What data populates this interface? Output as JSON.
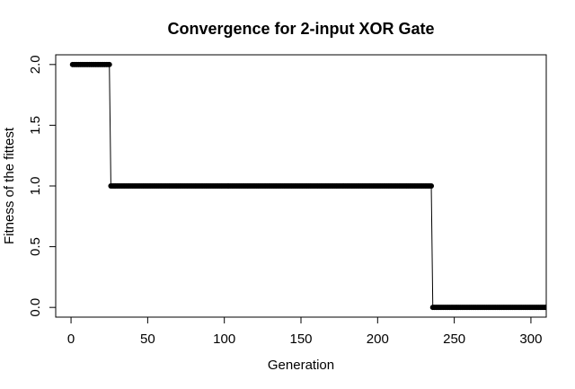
{
  "chart_data": {
    "type": "line",
    "title": "Convergence for 2-input XOR Gate",
    "x_label": "Generation",
    "y_label": "Fitness of the fittest",
    "color": "#000000",
    "x": [
      1,
      2,
      3,
      4,
      5,
      6,
      7,
      8,
      9,
      10,
      11,
      12,
      13,
      14,
      15,
      16,
      17,
      18,
      19,
      20,
      21,
      22,
      23,
      24,
      25,
      26,
      27,
      28,
      29,
      30,
      31,
      32,
      33,
      34,
      35,
      36,
      37,
      38,
      39,
      40,
      41,
      42,
      43,
      44,
      45,
      46,
      47,
      48,
      49,
      50,
      51,
      52,
      53,
      54,
      55,
      56,
      57,
      58,
      59,
      60,
      61,
      62,
      63,
      64,
      65,
      66,
      67,
      68,
      69,
      70,
      71,
      72,
      73,
      74,
      75,
      76,
      77,
      78,
      79,
      80,
      81,
      82,
      83,
      84,
      85,
      86,
      87,
      88,
      89,
      90,
      91,
      92,
      93,
      94,
      95,
      96,
      97,
      98,
      99,
      100,
      101,
      102,
      103,
      104,
      105,
      106,
      107,
      108,
      109,
      110,
      111,
      112,
      113,
      114,
      115,
      116,
      117,
      118,
      119,
      120,
      121,
      122,
      123,
      124,
      125,
      126,
      127,
      128,
      129,
      130,
      131,
      132,
      133,
      134,
      135,
      136,
      137,
      138,
      139,
      140,
      141,
      142,
      143,
      144,
      145,
      146,
      147,
      148,
      149,
      150,
      151,
      152,
      153,
      154,
      155,
      156,
      157,
      158,
      159,
      160,
      161,
      162,
      163,
      164,
      165,
      166,
      167,
      168,
      169,
      170,
      171,
      172,
      173,
      174,
      175,
      176,
      177,
      178,
      179,
      180,
      181,
      182,
      183,
      184,
      185,
      186,
      187,
      188,
      189,
      190,
      191,
      192,
      193,
      194,
      195,
      196,
      197,
      198,
      199,
      200,
      201,
      202,
      203,
      204,
      205,
      206,
      207,
      208,
      209,
      210,
      211,
      212,
      213,
      214,
      215,
      216,
      217,
      218,
      219,
      220,
      221,
      222,
      223,
      224,
      225,
      226,
      227,
      228,
      229,
      230,
      231,
      232,
      233,
      234,
      235,
      236,
      237,
      238,
      239,
      240,
      241,
      242,
      243,
      244,
      245,
      246,
      247,
      248,
      249,
      250,
      251,
      252,
      253,
      254,
      255,
      256,
      257,
      258,
      259,
      260,
      261,
      262,
      263,
      264,
      265,
      266,
      267,
      268,
      269,
      270,
      271,
      272,
      273,
      274,
      275,
      276,
      277,
      278,
      279,
      280,
      281,
      282,
      283,
      284,
      285,
      286,
      287,
      288,
      289,
      290,
      291,
      292,
      293,
      294,
      295,
      296,
      297,
      298,
      299,
      300,
      301,
      302,
      303,
      304,
      305,
      306,
      307,
      308,
      309,
      310
    ],
    "values": [
      2,
      2,
      2,
      2,
      2,
      2,
      2,
      2,
      2,
      2,
      2,
      2,
      2,
      2,
      2,
      2,
      2,
      2,
      2,
      2,
      2,
      2,
      2,
      2,
      2,
      1,
      1,
      1,
      1,
      1,
      1,
      1,
      1,
      1,
      1,
      1,
      1,
      1,
      1,
      1,
      1,
      1,
      1,
      1,
      1,
      1,
      1,
      1,
      1,
      1,
      1,
      1,
      1,
      1,
      1,
      1,
      1,
      1,
      1,
      1,
      1,
      1,
      1,
      1,
      1,
      1,
      1,
      1,
      1,
      1,
      1,
      1,
      1,
      1,
      1,
      1,
      1,
      1,
      1,
      1,
      1,
      1,
      1,
      1,
      1,
      1,
      1,
      1,
      1,
      1,
      1,
      1,
      1,
      1,
      1,
      1,
      1,
      1,
      1,
      1,
      1,
      1,
      1,
      1,
      1,
      1,
      1,
      1,
      1,
      1,
      1,
      1,
      1,
      1,
      1,
      1,
      1,
      1,
      1,
      1,
      1,
      1,
      1,
      1,
      1,
      1,
      1,
      1,
      1,
      1,
      1,
      1,
      1,
      1,
      1,
      1,
      1,
      1,
      1,
      1,
      1,
      1,
      1,
      1,
      1,
      1,
      1,
      1,
      1,
      1,
      1,
      1,
      1,
      1,
      1,
      1,
      1,
      1,
      1,
      1,
      1,
      1,
      1,
      1,
      1,
      1,
      1,
      1,
      1,
      1,
      1,
      1,
      1,
      1,
      1,
      1,
      1,
      1,
      1,
      1,
      1,
      1,
      1,
      1,
      1,
      1,
      1,
      1,
      1,
      1,
      1,
      1,
      1,
      1,
      1,
      1,
      1,
      1,
      1,
      1,
      1,
      1,
      1,
      1,
      1,
      1,
      1,
      1,
      1,
      1,
      1,
      1,
      1,
      1,
      1,
      1,
      1,
      1,
      1,
      1,
      1,
      1,
      1,
      1,
      1,
      1,
      1,
      1,
      1,
      1,
      1,
      1,
      1,
      1,
      1,
      0,
      0,
      0,
      0,
      0,
      0,
      0,
      0,
      0,
      0,
      0,
      0,
      0,
      0,
      0,
      0,
      0,
      0,
      0,
      0,
      0,
      0,
      0,
      0,
      0,
      0,
      0,
      0,
      0,
      0,
      0,
      0,
      0,
      0,
      0,
      0,
      0,
      0,
      0,
      0,
      0,
      0,
      0,
      0,
      0,
      0,
      0,
      0,
      0,
      0,
      0,
      0,
      0,
      0,
      0,
      0,
      0,
      0,
      0,
      0,
      0,
      0,
      0,
      0,
      0,
      0,
      0,
      0,
      0,
      0,
      0,
      0,
      0,
      0,
      0
    ],
    "xlim": [
      -10,
      310
    ],
    "xticks": [
      0,
      50,
      100,
      150,
      200,
      250,
      300
    ],
    "ylim": [
      -0.08,
      2.08
    ],
    "yticks": [
      {
        "value": 0,
        "label": "0.0"
      },
      {
        "value": 0.5,
        "label": "0.5"
      },
      {
        "value": 1,
        "label": "1.0"
      },
      {
        "value": 1.5,
        "label": "1.5"
      },
      {
        "value": 2,
        "label": "2.0"
      }
    ]
  }
}
